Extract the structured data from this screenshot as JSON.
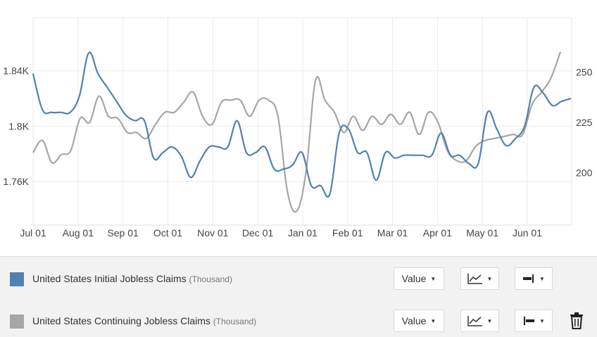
{
  "chart_data": {
    "type": "line",
    "x_labels": [
      "Jul 01",
      "Aug 01",
      "Sep 01",
      "Oct 01",
      "Nov 01",
      "Dec 01",
      "Jan 01",
      "Feb 01",
      "Mar 01",
      "Apr 01",
      "May 01",
      "Jun 01"
    ],
    "y_left": {
      "ticks": [
        1760,
        1800,
        1840
      ],
      "tick_labels": [
        "1.76K",
        "1.8K",
        "1.84K"
      ],
      "range": [
        1728.5,
        1878.5
      ]
    },
    "y_right": {
      "ticks": [
        200,
        225,
        250
      ],
      "tick_labels": [
        "200",
        "225",
        "250"
      ],
      "range": [
        174,
        277
      ]
    },
    "grid": true,
    "series": [
      {
        "name": "United States Initial Jobless Claims",
        "axis": "left",
        "color": "#4f81b5",
        "values": [
          1838,
          1812,
          1810,
          1810,
          1810,
          1822,
          1853,
          1838,
          1828,
          1818,
          1808,
          1804,
          1804,
          1777,
          1781,
          1785,
          1778,
          1763,
          1775,
          1785,
          1785,
          1785,
          1804,
          1781,
          1781,
          1785,
          1769,
          1769,
          1772,
          1781,
          1757,
          1757,
          1751,
          1795,
          1798,
          1781,
          1781,
          1761,
          1781,
          1777,
          1779,
          1779,
          1779,
          1779,
          1795,
          1779,
          1779,
          1773,
          1773,
          1810,
          1798,
          1786,
          1791,
          1800,
          1828,
          1824,
          1815,
          1818,
          1820
        ]
      },
      {
        "name": "United States Continuing Jobless Claims",
        "axis": "right",
        "color": "#a6a6a6",
        "values": [
          210,
          216,
          205,
          209,
          211,
          227,
          225,
          238,
          228,
          227,
          220,
          220,
          217,
          224,
          230,
          230,
          235,
          240,
          228,
          224,
          235,
          236,
          236,
          228,
          236,
          236,
          228,
          191,
          181,
          201,
          246,
          236,
          230,
          220,
          228,
          221,
          228,
          224,
          229,
          224,
          230,
          219,
          230,
          225,
          211,
          206,
          206,
          213,
          216,
          217,
          218,
          219,
          219,
          234,
          240,
          247,
          260
        ]
      }
    ]
  },
  "legend": {
    "rows": [
      {
        "name": "United States Initial Jobless Claims",
        "unit": "(Thousand)",
        "color": "#4f81b5",
        "value_label": "Value"
      },
      {
        "name": "United States Continuing Jobless Claims",
        "unit": "(Thousand)",
        "color": "#a6a6a6",
        "value_label": "Value"
      }
    ],
    "icons": [
      "line-chart-icon",
      "axis-right-icon",
      "axis-left-icon",
      "trash-icon"
    ]
  }
}
